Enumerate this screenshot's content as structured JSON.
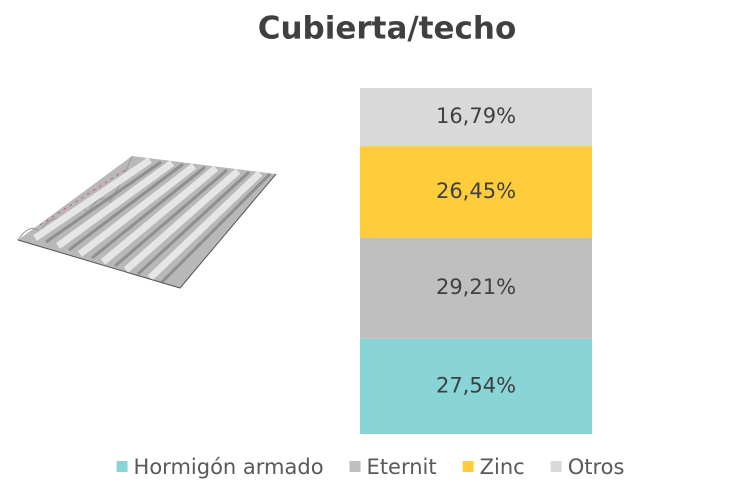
{
  "chart_data": {
    "type": "stacked_bar",
    "title": "Cubierta/techo",
    "categories": [
      null
    ],
    "series": [
      {
        "name": "Hormigón armado",
        "color": "#88d4d6",
        "values": [
          27.54
        ],
        "value_labels": [
          "27,54%"
        ]
      },
      {
        "name": "Eternit",
        "color": "#bfbfbf",
        "values": [
          29.21
        ],
        "value_labels": [
          "29,21%"
        ]
      },
      {
        "name": "Zinc",
        "color": "#ffcd3c",
        "values": [
          26.45
        ],
        "value_labels": [
          "26,45%"
        ]
      },
      {
        "name": "Otros",
        "color": "#d9d9d9",
        "values": [
          16.79
        ],
        "value_labels": [
          "16,79%"
        ]
      }
    ],
    "legend": "bottom"
  }
}
